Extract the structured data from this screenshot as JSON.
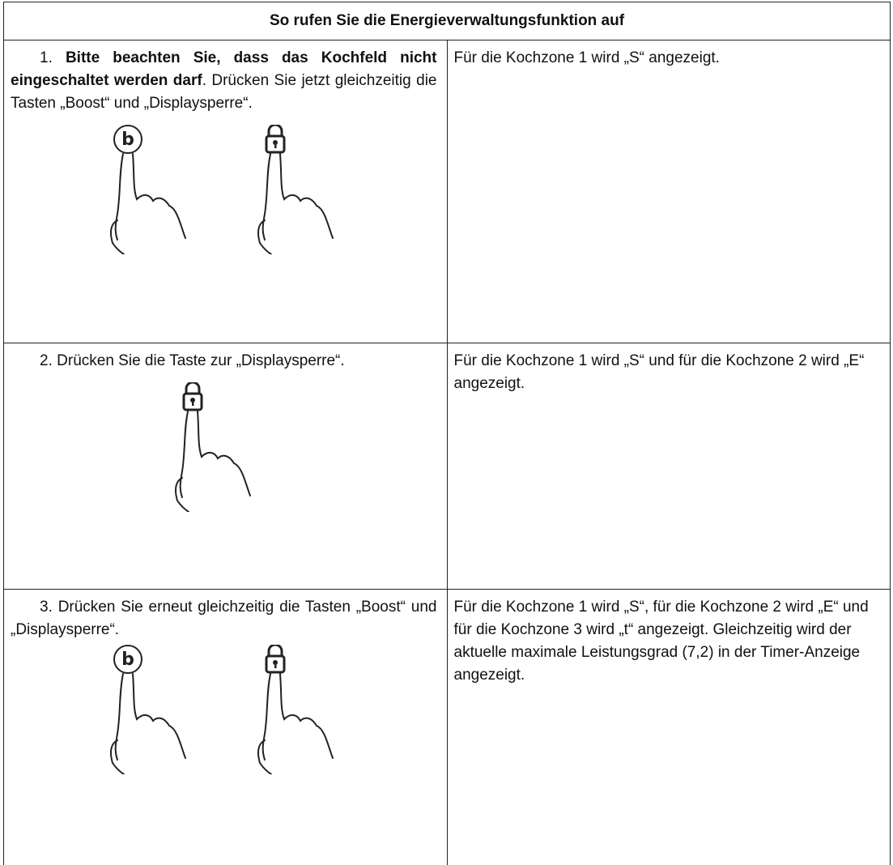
{
  "header": {
    "title": "So rufen Sie die Energieverwaltungsfunktion auf"
  },
  "rows": [
    {
      "number": "1.",
      "bold": "Bitte beachten Sie, dass das Kochfeld nicht eingeschaltet werden darf",
      "text": ". Drücken Sie jetzt gleichzeitig die Tasten „Boost“ und „Displaysperre“.",
      "result": "Für die Kochzone 1 wird „S“ angezeigt."
    },
    {
      "number": "2.",
      "text": "Drücken Sie die Taste zur „Displaysperre“.",
      "result": "Für die Kochzone 1 wird „S“ und für die Kochzone 2 wird „E“ angezeigt."
    },
    {
      "number": "3.",
      "text": "Drücken Sie erneut gleichzeitig die Tasten „Boost“ und „Displaysperre“.",
      "result": "Für die Kochzone 1 wird „S“, für die Kochzone 2 wird „E“ und für die Kochzone 3 wird „t“ angezeigt. Gleichzeitig wird der aktuelle maximale Leistungsgrad (7,2) in der Timer-Anzeige angezeigt."
    }
  ]
}
